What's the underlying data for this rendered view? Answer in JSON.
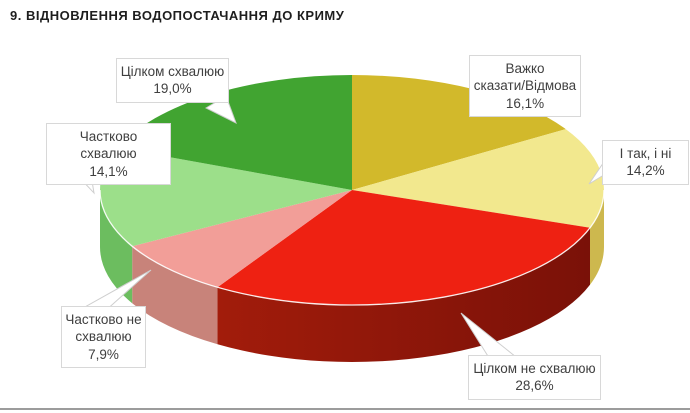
{
  "chart_data": {
    "type": "pie",
    "title": "9. ВІДНОВЛЕННЯ ВОДОПОСТАЧАННЯ ДО КРИМУ",
    "style": "3d",
    "direction": "clockwise",
    "start_angle_deg": 0,
    "labels": "callouts-with-percent",
    "slices": [
      {
        "label": "Важко сказати/Відмова",
        "value": 16.1,
        "value_label": "16,1%",
        "color": "#D2B92B"
      },
      {
        "label": "І так, і ні",
        "value": 14.2,
        "value_label": "14,2%",
        "color": "#F2E88E",
        "side": "#CDB84E"
      },
      {
        "label": "Цілком не схвалюю",
        "value": 28.6,
        "value_label": "28,6%",
        "color": "#EE2112",
        "side_grad": [
          "#7A1108",
          "#A21C0B"
        ]
      },
      {
        "label": "Частково не схвалюю",
        "value": 7.9,
        "value_label": "7,9%",
        "color": "#F29E98",
        "side": "#C8837A"
      },
      {
        "label": "Частково схвалюю",
        "value": 14.1,
        "value_label": "14,1%",
        "color": "#9CDF8A",
        "side": "#6CBD5F"
      },
      {
        "label": "Цілком схвалюю",
        "value": 19.0,
        "value_label": "19,0%",
        "color": "#41A431"
      }
    ]
  },
  "callouts": [
    {
      "name": "approve-full",
      "lines": [
        "Цілком схвалюю",
        "19,0%"
      ]
    },
    {
      "name": "approve-partial",
      "lines": [
        "Частково схвалюю",
        "14,1%"
      ]
    },
    {
      "name": "disapprove-partial",
      "lines": [
        "Частково не",
        "схвалюю",
        "7,9%"
      ]
    },
    {
      "name": "disapprove-full",
      "lines": [
        "Цілком не схвалюю",
        "28,6%"
      ]
    },
    {
      "name": "hard-to-say",
      "lines": [
        "Важко",
        "сказати/Відмова",
        "16,1%"
      ]
    },
    {
      "name": "both-yes-no",
      "lines": [
        "І так, і ні",
        "14,2%"
      ]
    }
  ]
}
